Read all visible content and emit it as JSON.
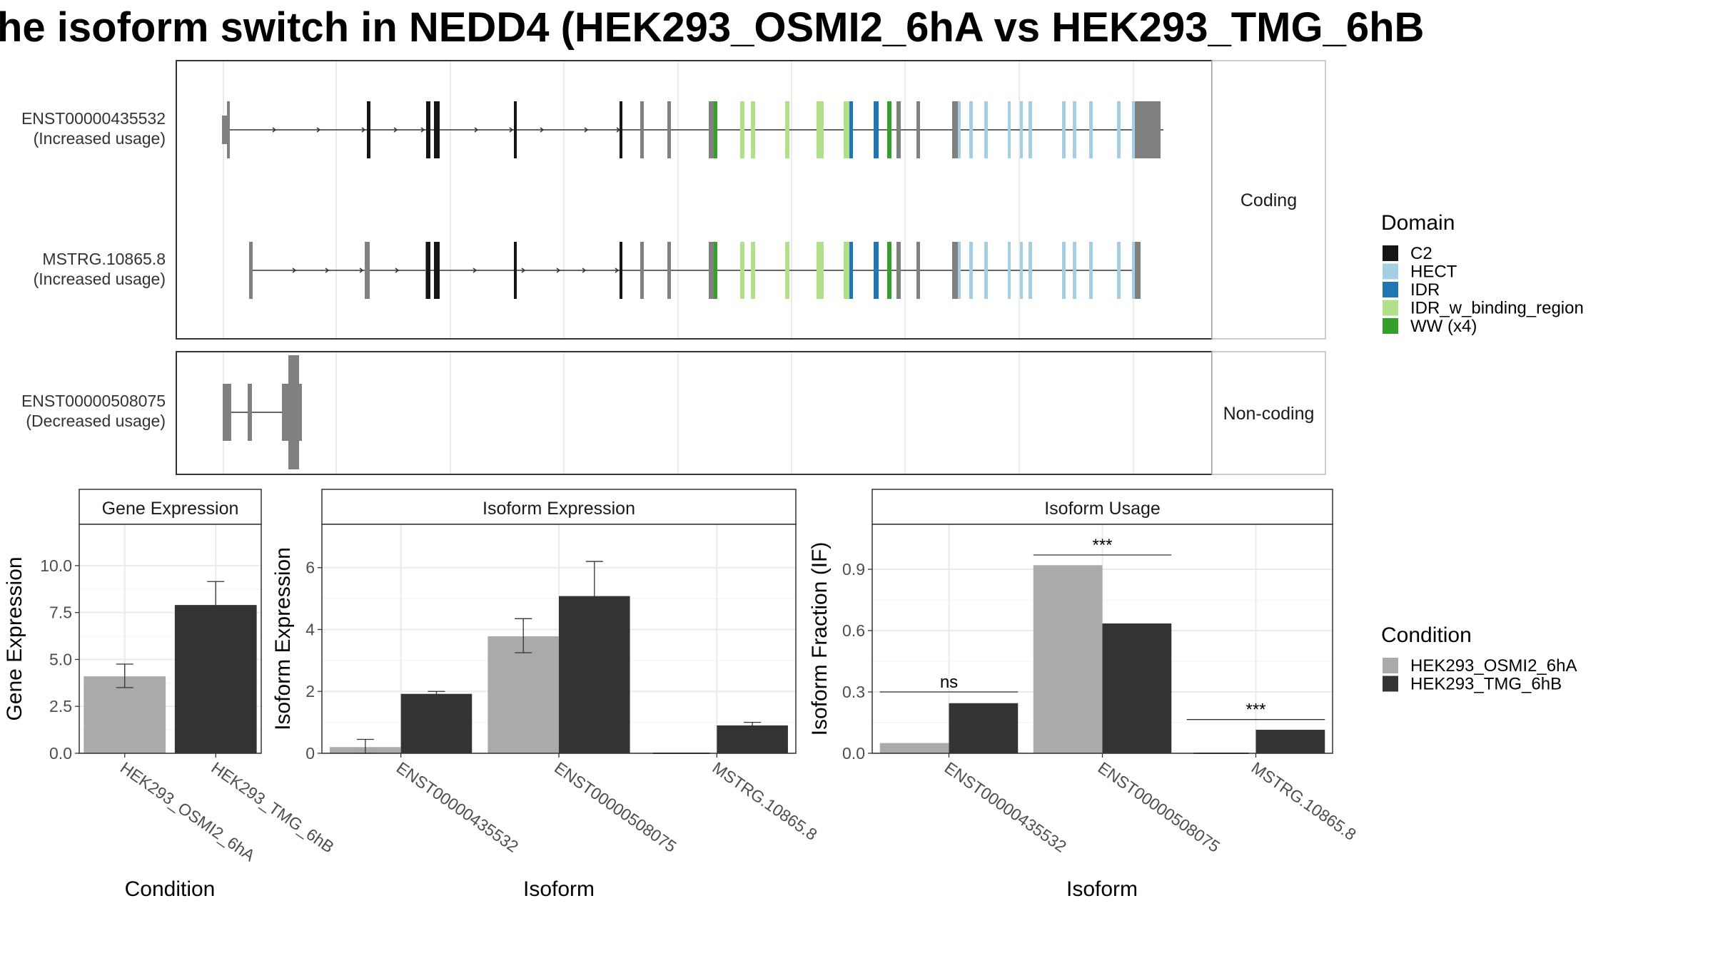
{
  "title": "he isoform switch in NEDD4 (HEK293_OSMI2_6hA vs HEK293_TMG_6hB",
  "colors": {
    "C2": "#151515",
    "HECT": "#a6cee3",
    "IDR": "#1f78b4",
    "IDR_w_binding_region": "#b2df8a",
    "WW (x4)": "#33a02c",
    "non_domain_exon": "#808080",
    "condition_a": "#aaaaaa",
    "condition_b": "#333333"
  },
  "transcript_panel": {
    "groups": [
      {
        "label": "Coding"
      },
      {
        "label": "Non-coding"
      }
    ],
    "transcripts": [
      {
        "id": "ENST00000435532",
        "usage": "(Increased usage)",
        "group": 0
      },
      {
        "id": "MSTRG.10865.8",
        "usage": "(Increased usage)",
        "group": 0
      },
      {
        "id": "ENST00000508075",
        "usage": "(Decreased usage)",
        "group": 1
      }
    ],
    "domain_legend": {
      "title": "Domain",
      "items": [
        "C2",
        "HECT",
        "IDR",
        "IDR_w_binding_region",
        "WW (x4)"
      ]
    }
  },
  "condition_legend": {
    "title": "Condition",
    "items": [
      "HEK293_OSMI2_6hA",
      "HEK293_TMG_6hB"
    ]
  },
  "chart_data": [
    {
      "type": "bar",
      "title": "Gene Expression",
      "xlabel": "Condition",
      "ylabel": "Gene Expression",
      "categories": [
        "HEK293_OSMI2_6hA",
        "HEK293_TMG_6hB"
      ],
      "values": [
        4.1,
        7.9
      ],
      "error": [
        [
          3.5,
          4.75
        ],
        [
          6.65,
          9.15
        ]
      ],
      "ylim": [
        0,
        12.2
      ],
      "yticks": [
        "0.0",
        "2.5",
        "5.0",
        "7.5",
        "10.0"
      ],
      "ytick_values": [
        0,
        2.5,
        5,
        7.5,
        10
      ]
    },
    {
      "type": "bar",
      "title": "Isoform Expression",
      "xlabel": "Isoform",
      "ylabel": "Isoform Expression",
      "categories": [
        "ENST00000435532",
        "ENST00000508075",
        "MSTRG.10865.8"
      ],
      "series": [
        {
          "name": "HEK293_OSMI2_6hA",
          "values": [
            0.2,
            3.78,
            0.0
          ],
          "error": [
            [
              0.0,
              0.45
            ],
            [
              3.25,
              4.35
            ],
            [
              0,
              0
            ]
          ]
        },
        {
          "name": "HEK293_TMG_6hB",
          "values": [
            1.92,
            5.08,
            0.9
          ],
          "error": [
            [
              1.85,
              2.0
            ],
            [
              3.95,
              6.2
            ],
            [
              0.8,
              1.0
            ]
          ]
        }
      ],
      "ylim": [
        0,
        7.4
      ],
      "yticks": [
        "0",
        "2",
        "4",
        "6"
      ],
      "ytick_values": [
        0,
        2,
        4,
        6
      ]
    },
    {
      "type": "bar",
      "title": "Isoform Usage",
      "xlabel": "Isoform",
      "ylabel": "Isoform Fraction (IF)",
      "categories": [
        "ENST00000435532",
        "ENST00000508075",
        "MSTRG.10865.8"
      ],
      "series": [
        {
          "name": "HEK293_OSMI2_6hA",
          "values": [
            0.05,
            0.92,
            0.0
          ]
        },
        {
          "name": "HEK293_TMG_6hB",
          "values": [
            0.245,
            0.635,
            0.115
          ]
        }
      ],
      "significance": [
        {
          "label": "ns",
          "category": 0,
          "y": 0.3
        },
        {
          "label": "***",
          "category": 1,
          "y": 0.97
        },
        {
          "label": "***",
          "category": 2,
          "y": 0.165
        }
      ],
      "ylim": [
        0,
        1.12
      ],
      "yticks": [
        "0.0",
        "0.3",
        "0.6",
        "0.9"
      ],
      "ytick_values": [
        0,
        0.3,
        0.6,
        0.9
      ]
    }
  ]
}
